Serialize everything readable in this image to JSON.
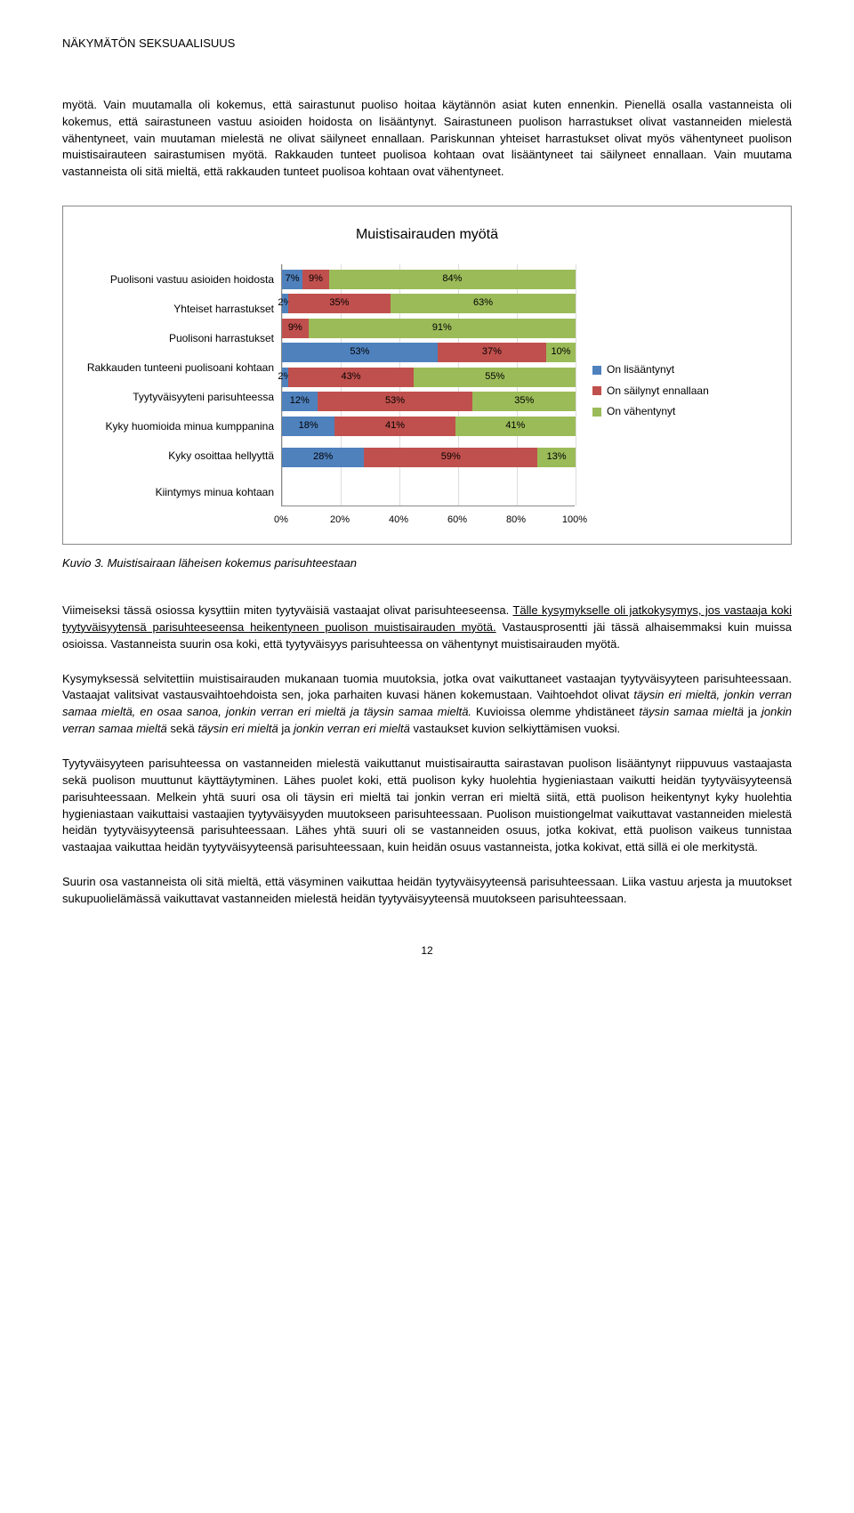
{
  "header": "NÄKYMÄTÖN SEKSUAALISUUS",
  "p1": "myötä. Vain muutamalla oli kokemus, että sairastunut puoliso hoitaa käytännön asiat kuten ennenkin. Pienellä osalla vastanneista oli kokemus, että sairastuneen vastuu asioiden hoidosta on lisääntynyt. Sairastuneen puolison harrastukset olivat vastanneiden mielestä vähentyneet, vain muutaman mielestä ne olivat säilyneet ennallaan. Pariskunnan yhteiset harrastukset olivat myös vähentyneet puolison muistisairauteen sairastumisen myötä. Rakkauden tunteet puolisoa kohtaan ovat lisääntyneet tai säilyneet ennallaan. Vain muutama vastanneista oli sitä mieltä, että rakkauden tunteet puolisoa kohtaan ovat vähentyneet.",
  "chart": {
    "title": "Muistisairauden myötä",
    "colors": {
      "blue": "#4f81bd",
      "red": "#c0504d",
      "green": "#9bbb59"
    },
    "axis_ticks": [
      "0%",
      "20%",
      "40%",
      "60%",
      "80%",
      "100%"
    ],
    "legend": [
      {
        "label": "On lisääntynyt",
        "color": "#4f81bd"
      },
      {
        "label": "On säilynyt ennallaan",
        "color": "#c0504d"
      },
      {
        "label": "On vähentynyt",
        "color": "#9bbb59"
      }
    ],
    "rows": [
      {
        "label": "Puolisoni vastuu asioiden hoidosta",
        "segs": [
          {
            "v": 7,
            "t": "7%"
          },
          {
            "v": 9,
            "t": "9%"
          },
          {
            "v": 84,
            "t": "84%"
          }
        ]
      },
      {
        "label": "Yhteiset harrastukset",
        "segs": [
          {
            "v": 2,
            "t": "2%"
          },
          {
            "v": 35,
            "t": "35%"
          },
          {
            "v": 63,
            "t": "63%"
          }
        ]
      },
      {
        "label": "Puolisoni harrastukset",
        "segs": [
          {
            "v": 0,
            "t": ""
          },
          {
            "v": 9,
            "t": "9%"
          },
          {
            "v": 91,
            "t": "91%"
          }
        ]
      },
      {
        "label": "Rakkauden tunteeni puolisoani kohtaan",
        "segs": [
          {
            "v": 53,
            "t": "53%"
          },
          {
            "v": 37,
            "t": "37%"
          },
          {
            "v": 10,
            "t": "10%"
          }
        ]
      },
      {
        "label": "Tyytyväisyyteni parisuhteessa",
        "segs": [
          {
            "v": 2,
            "t": "2%"
          },
          {
            "v": 43,
            "t": "43%"
          },
          {
            "v": 55,
            "t": "55%"
          }
        ]
      },
      {
        "label": "Kyky huomioida minua kumppanina",
        "segs": [
          {
            "v": 12,
            "t": "12%"
          },
          {
            "v": 53,
            "t": "53%"
          },
          {
            "v": 35,
            "t": "35%"
          }
        ]
      },
      {
        "label": "Kyky osoittaa hellyyttä",
        "segs": [
          {
            "v": 18,
            "t": "18%"
          },
          {
            "v": 41,
            "t": "41%"
          },
          {
            "v": 41,
            "t": "41%"
          }
        ]
      },
      {
        "label": "Kiintymys minua kohtaan",
        "segs": [
          {
            "v": 28,
            "t": "28%"
          },
          {
            "v": 59,
            "t": "59%"
          },
          {
            "v": 13,
            "t": "13%"
          }
        ]
      }
    ]
  },
  "caption": "Kuvio 3. Muistisairaan läheisen kokemus parisuhteestaan",
  "p2a": "Viimeiseksi tässä osiossa kysyttiin miten tyytyväisiä vastaajat olivat parisuhteeseensa. ",
  "p2b": "Tälle kysymykselle oli jatkokysymys, jos vastaaja koki tyytyväisyytensä parisuhteeseensa heikentyneen puolison muistisairauden myötä.",
  "p2c": " Vastausprosentti jäi tässä alhaisemmaksi kuin muissa osioissa. Vastanneista suurin osa koki, että tyytyväisyys parisuhteessa on vähentynyt muistisairauden myötä.",
  "p3a": "Kysymyksessä selvitettiin muistisairauden mukanaan tuomia muutoksia, jotka ovat vaikuttaneet vastaajan tyytyväisyyteen parisuhteessaan. Vastaajat valitsivat vastausvaihtoehdoista sen, joka parhaiten kuvasi hänen kokemustaan. Vaihtoehdot olivat ",
  "p3b": "täysin eri mieltä, jonkin verran samaa mieltä, en osaa sanoa, jonkin verran eri mieltä ja täysin samaa mieltä.",
  "p3c": " Kuvioissa olemme yhdistäneet ",
  "p3d": "täysin samaa mieltä",
  "p3e": " ja ",
  "p3f": "jonkin verran samaa mieltä",
  "p3g": " sekä ",
  "p3h": "täysin eri mieltä",
  "p3i": " ja ",
  "p3j": "jonkin verran eri mieltä",
  "p3k": " vastaukset kuvion selkiyttämisen vuoksi.",
  "p4": "Tyytyväisyyteen parisuhteessa on vastanneiden mielestä vaikuttanut muistisairautta sairastavan puolison lisääntynyt riippuvuus vastaajasta sekä puolison muuttunut käyttäytyminen. Lähes puolet koki, että puolison kyky huolehtia hygieniastaan vaikutti heidän tyytyväisyyteensä parisuhteessaan. Melkein yhtä suuri osa oli täysin eri mieltä tai jonkin verran eri mieltä siitä, että puolison heikentynyt kyky huolehtia hygieniastaan vaikuttaisi vastaajien tyytyväisyyden muutokseen parisuhteessaan. Puolison muistiongelmat vaikuttavat vastanneiden mielestä heidän tyytyväisyyteensä parisuhteessaan. Lähes yhtä suuri oli se vastanneiden osuus, jotka kokivat, että puolison vaikeus tunnistaa vastaajaa vaikuttaa heidän tyytyväisyyteensä parisuhteessaan, kuin heidän osuus vastanneista, jotka kokivat, että sillä ei ole merkitystä.",
  "p5": "Suurin osa vastanneista oli sitä mieltä, että väsyminen vaikuttaa heidän tyytyväisyyteensä parisuhteessaan. Liika vastuu arjesta ja muutokset sukupuolielämässä vaikuttavat vastanneiden mielestä heidän tyytyväisyyteensä muutokseen parisuhteessaan.",
  "pagenum": "12"
}
